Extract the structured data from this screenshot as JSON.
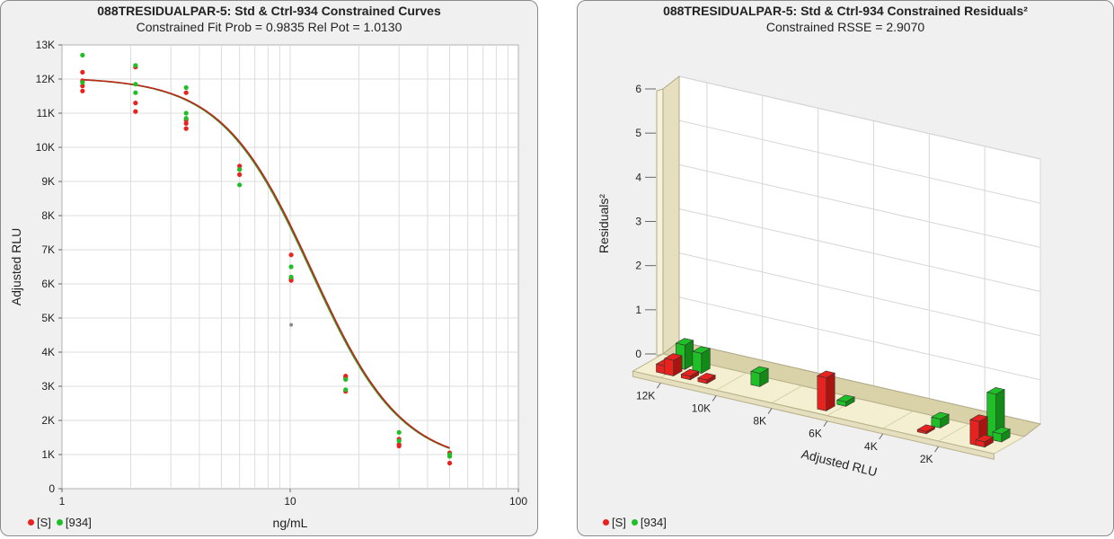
{
  "colors": {
    "std": "#e8231f",
    "ctrl": "#1fbf27",
    "outlier": "#888888",
    "curve_std": "#c0251a",
    "curve_ctrl": "#3a9a26"
  },
  "legend": {
    "std_label": "[S]",
    "ctrl_label": "[934]"
  },
  "chart_data": [
    {
      "type": "scatter",
      "title": "088TRESIDUALPAR-5: Std & Ctrl-934 Constrained Curves",
      "subtitle": "Constrained Fit Prob = 0.9835  Rel Pot = 1.0130",
      "xlabel": "ng/mL",
      "ylabel": "Adjusted RLU",
      "xscale": "log",
      "xlim": [
        1,
        100
      ],
      "ylim": [
        0,
        13000
      ],
      "xticks": [
        "1",
        "10",
        "100"
      ],
      "yticks": [
        "0",
        "1K",
        "2K",
        "3K",
        "4K",
        "5K",
        "6K",
        "7K",
        "8K",
        "9K",
        "10K",
        "11K",
        "12K",
        "13K"
      ],
      "grid": true,
      "legend_position": "bottom-left",
      "series": [
        {
          "name": "[S]",
          "points": [
            [
              1.23,
              12200
            ],
            [
              1.23,
              11950
            ],
            [
              1.23,
              11800
            ],
            [
              1.23,
              11650
            ],
            [
              2.1,
              12350
            ],
            [
              2.1,
              11300
            ],
            [
              2.1,
              11050
            ],
            [
              3.5,
              11600
            ],
            [
              3.5,
              10800
            ],
            [
              3.5,
              10700
            ],
            [
              3.5,
              10550
            ],
            [
              6.0,
              9450
            ],
            [
              6.0,
              9350
            ],
            [
              6.0,
              9200
            ],
            [
              10.1,
              6850
            ],
            [
              10.1,
              6150
            ],
            [
              10.1,
              6100
            ],
            [
              17.5,
              3300
            ],
            [
              17.5,
              3250
            ],
            [
              17.5,
              2850
            ],
            [
              30,
              1450
            ],
            [
              30,
              1300
            ],
            [
              30,
              1250
            ],
            [
              50,
              1050
            ],
            [
              50,
              950
            ],
            [
              50,
              750
            ]
          ]
        },
        {
          "name": "[934]",
          "points": [
            [
              1.23,
              12700
            ],
            [
              1.23,
              11900
            ],
            [
              2.1,
              12400
            ],
            [
              2.1,
              11850
            ],
            [
              2.1,
              11600
            ],
            [
              3.5,
              11750
            ],
            [
              3.5,
              11000
            ],
            [
              3.5,
              10850
            ],
            [
              6.0,
              9350
            ],
            [
              6.0,
              8900
            ],
            [
              10.1,
              6500
            ],
            [
              10.1,
              6200
            ],
            [
              17.5,
              3200
            ],
            [
              17.5,
              2900
            ],
            [
              30,
              1650
            ],
            [
              30,
              1400
            ],
            [
              50,
              1000
            ],
            [
              50,
              950
            ]
          ]
        },
        {
          "name": "outlier",
          "points": [
            [
              10.1,
              4800
            ]
          ]
        }
      ],
      "curves": [
        {
          "name": "[S]",
          "A": 12050,
          "D": 680,
          "C": 12.5,
          "B": 2.2
        },
        {
          "name": "[934]",
          "A": 12050,
          "D": 680,
          "C": 12.35,
          "B": 2.2
        }
      ]
    },
    {
      "type": "bar",
      "title": "088TRESIDUALPAR-5: Std & Ctrl-934  Constrained Residuals²",
      "subtitle": "Constrained RSSE = 2.9070",
      "xlabel": "Adjusted RLU",
      "ylabel": "Residuals²",
      "xlim": [
        13000,
        0
      ],
      "ylim": [
        0,
        6
      ],
      "xticks": [
        "12K",
        "10K",
        "8K",
        "6K",
        "4K",
        "2K"
      ],
      "yticks": [
        "0",
        "1",
        "2",
        "3",
        "4",
        "5",
        "6"
      ],
      "grid": true,
      "legend_position": "bottom-left",
      "series": [
        {
          "name": "[S]",
          "bars": [
            [
              12200,
              0.18
            ],
            [
              11900,
              0.35
            ],
            [
              11300,
              0.08
            ],
            [
              10700,
              0.08
            ],
            [
              6400,
              0.75
            ],
            [
              2800,
              0.05
            ],
            [
              900,
              0.55
            ],
            [
              700,
              0.12
            ]
          ]
        },
        {
          "name": "[934]",
          "bars": [
            [
              11900,
              0.55
            ],
            [
              11300,
              0.45
            ],
            [
              9200,
              0.3
            ],
            [
              6100,
              0.1
            ],
            [
              2700,
              0.2
            ],
            [
              700,
              1.05
            ],
            [
              500,
              0.18
            ]
          ]
        }
      ]
    }
  ]
}
